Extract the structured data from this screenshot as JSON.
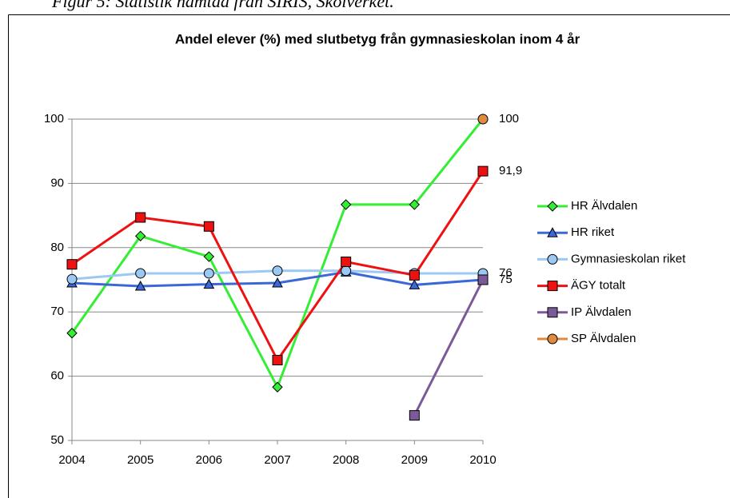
{
  "caption": "Figur 5: Statistik hämtad från SIRIS, Skolverket.",
  "chart_data": {
    "type": "line",
    "title": "Andel elever (%) med slutbetyg från gymnasieskolan inom 4 år",
    "categories": [
      "2004",
      "2005",
      "2006",
      "2007",
      "2008",
      "2009",
      "2010"
    ],
    "ylim": [
      50,
      100
    ],
    "yticks": [
      50,
      60,
      70,
      80,
      90,
      100
    ],
    "grid": true,
    "legend": "right",
    "series": [
      {
        "name": "HR Älvdalen",
        "color": "#33ee33",
        "marker": "diamond",
        "values": [
          66.7,
          81.8,
          78.6,
          58.3,
          86.7,
          86.7,
          100
        ]
      },
      {
        "name": "HR riket",
        "color": "#3a68d8",
        "marker": "triangle",
        "values": [
          74.5,
          74.0,
          74.3,
          74.5,
          76.2,
          74.2,
          75.0
        ]
      },
      {
        "name": "Gymnasieskolan riket",
        "color": "#9cc8f4",
        "marker": "circle",
        "values": [
          75.1,
          76.0,
          76.0,
          76.4,
          76.4,
          76.0,
          76
        ],
        "data_label_last": true
      },
      {
        "name": "ÄGY totalt",
        "color": "#ee1111",
        "marker": "square",
        "values": [
          77.4,
          84.7,
          83.3,
          62.5,
          77.8,
          75.7,
          91.9
        ],
        "value_labels": [
          null,
          null,
          null,
          null,
          null,
          null,
          "91,9"
        ],
        "data_label_last": true
      },
      {
        "name": "IP Älvdalen",
        "color": "#7a5b98",
        "marker": "square",
        "values": [
          null,
          null,
          null,
          null,
          null,
          53.9,
          75
        ],
        "data_label_last": true
      },
      {
        "name": "SP Älvdalen",
        "color": "#e08a40",
        "marker": "circle",
        "values": [
          null,
          null,
          null,
          null,
          null,
          null,
          100
        ],
        "data_label_last": true
      }
    ]
  }
}
